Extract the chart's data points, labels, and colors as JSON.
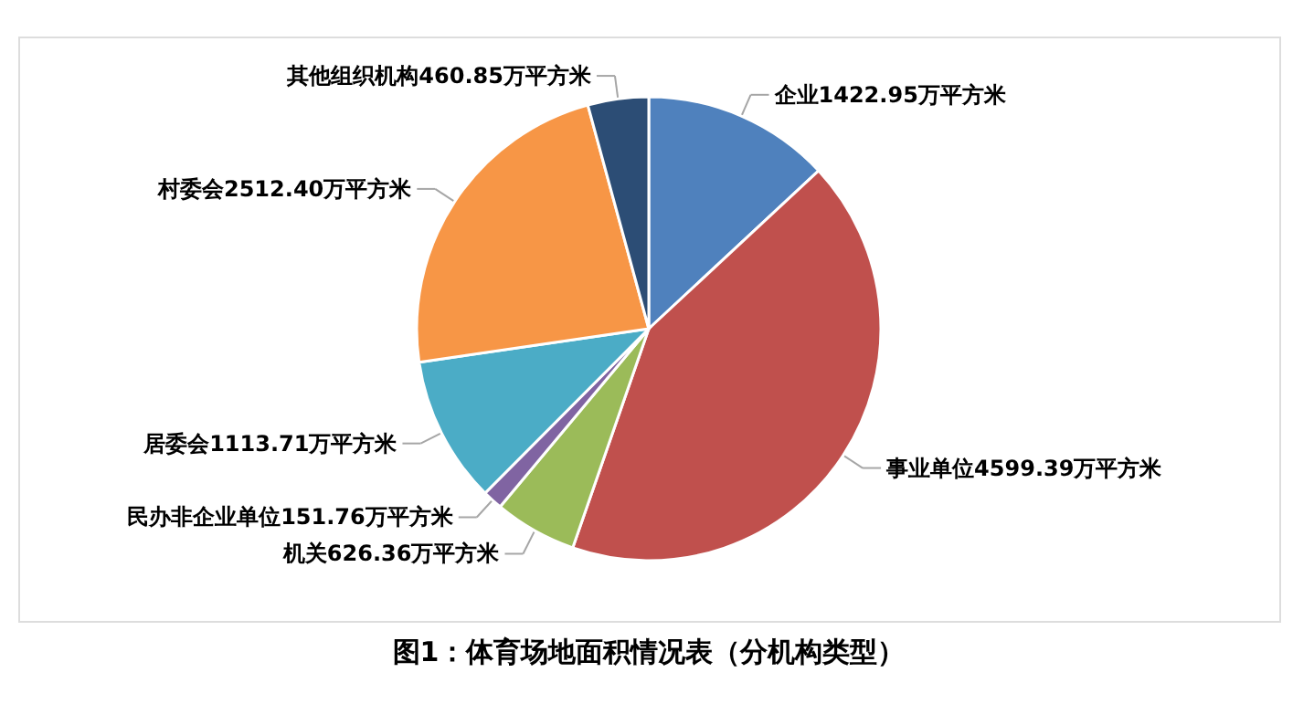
{
  "chart_data": {
    "type": "pie",
    "title": "图1：体育场地面积情况表（分机构类型）",
    "categories": [
      "企业",
      "事业单位",
      "机关",
      "民办非企业单位",
      "居委会",
      "村委会",
      "其他组织机构"
    ],
    "values": [
      1422.95,
      4599.39,
      626.36,
      151.76,
      1113.71,
      2512.4,
      460.85
    ],
    "value_labels": [
      "1422.95万平方米",
      "4599.39万平方米",
      "626.36万平方米",
      "151.76万平方米",
      "1113.71万平方米",
      "2512.40万平方米",
      "460.85万平方米"
    ],
    "colors": [
      "#4f81bd",
      "#c0504d",
      "#9bbb59",
      "#8064a2",
      "#4bacc6",
      "#f79646",
      "#2c4d75"
    ]
  }
}
